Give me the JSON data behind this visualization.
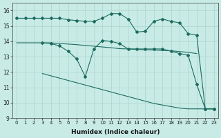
{
  "xlabel": "Humidex (Indice chaleur)",
  "xlim": [
    -0.5,
    23.5
  ],
  "ylim": [
    9,
    16.5
  ],
  "yticks": [
    9,
    10,
    11,
    12,
    13,
    14,
    15,
    16
  ],
  "xticks": [
    0,
    1,
    2,
    3,
    4,
    5,
    6,
    7,
    8,
    9,
    10,
    11,
    12,
    13,
    14,
    15,
    16,
    17,
    18,
    19,
    20,
    21,
    22,
    23
  ],
  "bg_color": "#c8ebe6",
  "line_color": "#1b6b5f",
  "grid_color": "#b0d8d0",
  "lines": [
    {
      "x": [
        0,
        1,
        2,
        3,
        4,
        5,
        6,
        7,
        8,
        9,
        10,
        11,
        12,
        13,
        14,
        15,
        16,
        17,
        18,
        19,
        20,
        21,
        22,
        23
      ],
      "y": [
        15.5,
        15.5,
        15.5,
        15.5,
        15.5,
        15.5,
        15.4,
        15.35,
        15.3,
        15.3,
        15.5,
        15.8,
        15.8,
        15.45,
        14.6,
        14.65,
        15.3,
        15.45,
        15.3,
        15.2,
        14.5,
        14.4,
        9.6,
        9.6
      ],
      "marker": true
    },
    {
      "x": [
        3,
        4,
        5,
        6,
        7,
        8,
        9,
        10,
        11,
        12,
        13,
        14,
        15,
        16,
        17,
        18,
        19,
        20,
        21,
        22,
        23
      ],
      "y": [
        13.9,
        13.85,
        13.7,
        13.35,
        12.85,
        11.7,
        13.5,
        14.05,
        14.0,
        13.85,
        13.5,
        13.5,
        13.5,
        13.5,
        13.5,
        13.35,
        13.2,
        13.1,
        11.2,
        9.6,
        9.6
      ],
      "marker": true
    },
    {
      "x": [
        0,
        1,
        2,
        3,
        4,
        5,
        6,
        7,
        8,
        9,
        10,
        11,
        12,
        13,
        14,
        15,
        16,
        17,
        18,
        19,
        20,
        21
      ],
      "y": [
        13.9,
        13.9,
        13.9,
        13.9,
        13.9,
        13.85,
        13.82,
        13.78,
        13.73,
        13.68,
        13.63,
        13.58,
        13.52,
        13.5,
        13.47,
        13.45,
        13.43,
        13.4,
        13.38,
        13.33,
        13.28,
        13.2
      ],
      "marker": false
    },
    {
      "x": [
        3,
        4,
        5,
        6,
        7,
        8,
        9,
        10,
        11,
        12,
        13,
        14,
        15,
        16,
        17,
        18,
        19,
        20,
        21,
        22,
        23
      ],
      "y": [
        11.9,
        11.75,
        11.6,
        11.45,
        11.3,
        11.15,
        11.0,
        10.85,
        10.7,
        10.55,
        10.4,
        10.25,
        10.1,
        9.95,
        9.85,
        9.75,
        9.65,
        9.6,
        9.6,
        9.6,
        9.6
      ],
      "marker": false
    }
  ]
}
